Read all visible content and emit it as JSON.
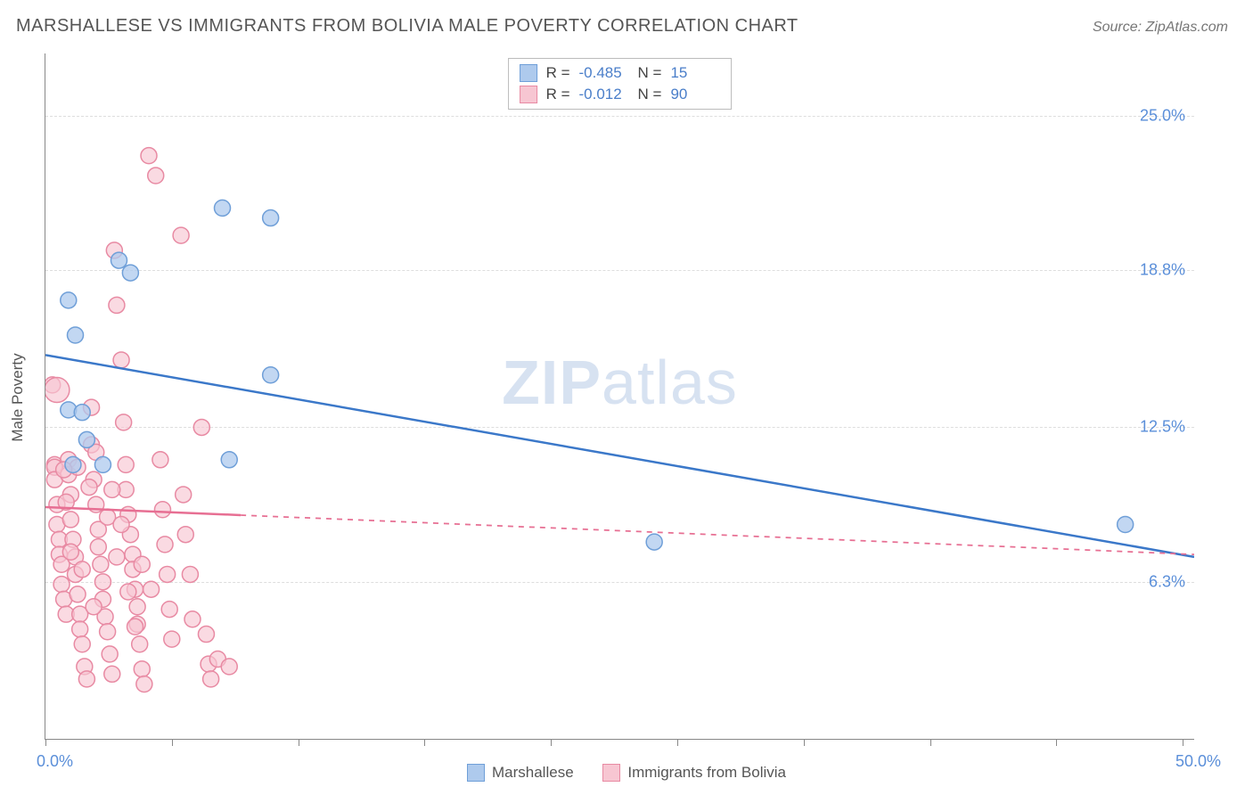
{
  "title": "MARSHALLESE VS IMMIGRANTS FROM BOLIVIA MALE POVERTY CORRELATION CHART",
  "source": "Source: ZipAtlas.com",
  "watermark_bold": "ZIP",
  "watermark_light": "atlas",
  "y_axis_title": "Male Poverty",
  "chart": {
    "type": "scatter",
    "xlim": [
      0,
      50
    ],
    "ylim": [
      0,
      27.5
    ],
    "x_min_label": "0.0%",
    "x_max_label": "50.0%",
    "y_gridlines": [
      6.3,
      12.5,
      18.8,
      25.0
    ],
    "y_grid_labels": [
      "6.3%",
      "12.5%",
      "18.8%",
      "25.0%"
    ],
    "x_ticks": [
      0,
      5.5,
      11,
      16.5,
      22,
      27.5,
      33,
      38.5,
      44,
      49.5
    ],
    "grid_color": "#dddddd",
    "axis_color": "#888888",
    "label_color": "#5b8fd9",
    "plot_bg": "#ffffff"
  },
  "series": [
    {
      "name": "Marshallese",
      "color_fill": "#aecaed",
      "color_stroke": "#6f9fd8",
      "marker_radius": 9,
      "marker_opacity": 0.75,
      "line_color": "#3b78c9",
      "line_width": 2.5,
      "line_dash": "none",
      "R": "-0.485",
      "N": "15",
      "trend": {
        "x1": 0,
        "y1": 15.4,
        "x2": 50,
        "y2": 7.3
      },
      "trend_solid_until_x": 50,
      "points": [
        {
          "x": 1.0,
          "y": 17.6
        },
        {
          "x": 1.3,
          "y": 16.2
        },
        {
          "x": 3.2,
          "y": 19.2
        },
        {
          "x": 3.7,
          "y": 18.7
        },
        {
          "x": 1.0,
          "y": 13.2
        },
        {
          "x": 1.6,
          "y": 13.1
        },
        {
          "x": 1.8,
          "y": 12.0
        },
        {
          "x": 7.7,
          "y": 21.3
        },
        {
          "x": 9.8,
          "y": 20.9
        },
        {
          "x": 9.8,
          "y": 14.6
        },
        {
          "x": 8.0,
          "y": 11.2
        },
        {
          "x": 2.5,
          "y": 11.0
        },
        {
          "x": 26.5,
          "y": 7.9
        },
        {
          "x": 47.0,
          "y": 8.6
        },
        {
          "x": 1.2,
          "y": 11.0
        }
      ]
    },
    {
      "name": "Immigrants from Bolivia",
      "color_fill": "#f7c6d2",
      "color_stroke": "#e88aa3",
      "marker_radius": 9,
      "marker_opacity": 0.65,
      "line_color": "#e76f93",
      "line_width": 2.5,
      "line_dash": "6,6",
      "R": "-0.012",
      "N": "90",
      "trend": {
        "x1": 0,
        "y1": 9.3,
        "x2": 50,
        "y2": 7.4
      },
      "trend_solid_until_x": 8.5,
      "points": [
        {
          "x": 0.3,
          "y": 14.2
        },
        {
          "x": 0.4,
          "y": 11.0
        },
        {
          "x": 0.4,
          "y": 10.9
        },
        {
          "x": 0.4,
          "y": 10.4
        },
        {
          "x": 0.5,
          "y": 9.4
        },
        {
          "x": 0.5,
          "y": 8.6
        },
        {
          "x": 0.6,
          "y": 8.0
        },
        {
          "x": 0.6,
          "y": 7.4
        },
        {
          "x": 0.7,
          "y": 7.0
        },
        {
          "x": 0.7,
          "y": 6.2
        },
        {
          "x": 0.8,
          "y": 5.6
        },
        {
          "x": 0.9,
          "y": 5.0
        },
        {
          "x": 1.0,
          "y": 11.2
        },
        {
          "x": 1.0,
          "y": 10.6
        },
        {
          "x": 1.1,
          "y": 9.8
        },
        {
          "x": 1.1,
          "y": 8.8
        },
        {
          "x": 1.2,
          "y": 8.0
        },
        {
          "x": 1.3,
          "y": 7.3
        },
        {
          "x": 1.3,
          "y": 6.6
        },
        {
          "x": 1.4,
          "y": 5.8
        },
        {
          "x": 1.5,
          "y": 5.0
        },
        {
          "x": 1.5,
          "y": 4.4
        },
        {
          "x": 1.6,
          "y": 3.8
        },
        {
          "x": 1.7,
          "y": 2.9
        },
        {
          "x": 1.8,
          "y": 2.4
        },
        {
          "x": 2.0,
          "y": 13.3
        },
        {
          "x": 2.0,
          "y": 11.8
        },
        {
          "x": 2.1,
          "y": 10.4
        },
        {
          "x": 2.2,
          "y": 9.4
        },
        {
          "x": 2.3,
          "y": 8.4
        },
        {
          "x": 2.3,
          "y": 7.7
        },
        {
          "x": 2.4,
          "y": 7.0
        },
        {
          "x": 2.5,
          "y": 6.3
        },
        {
          "x": 2.5,
          "y": 5.6
        },
        {
          "x": 2.6,
          "y": 4.9
        },
        {
          "x": 2.7,
          "y": 4.3
        },
        {
          "x": 2.8,
          "y": 3.4
        },
        {
          "x": 2.9,
          "y": 2.6
        },
        {
          "x": 3.0,
          "y": 19.6
        },
        {
          "x": 3.1,
          "y": 17.4
        },
        {
          "x": 3.3,
          "y": 15.2
        },
        {
          "x": 3.4,
          "y": 12.7
        },
        {
          "x": 3.5,
          "y": 11.0
        },
        {
          "x": 3.5,
          "y": 10.0
        },
        {
          "x": 3.6,
          "y": 9.0
        },
        {
          "x": 3.7,
          "y": 8.2
        },
        {
          "x": 3.8,
          "y": 7.4
        },
        {
          "x": 3.8,
          "y": 6.8
        },
        {
          "x": 3.9,
          "y": 6.0
        },
        {
          "x": 4.0,
          "y": 5.3
        },
        {
          "x": 4.0,
          "y": 4.6
        },
        {
          "x": 4.1,
          "y": 3.8
        },
        {
          "x": 4.2,
          "y": 2.8
        },
        {
          "x": 4.3,
          "y": 2.2
        },
        {
          "x": 4.5,
          "y": 23.4
        },
        {
          "x": 4.8,
          "y": 22.6
        },
        {
          "x": 5.0,
          "y": 11.2
        },
        {
          "x": 5.1,
          "y": 9.2
        },
        {
          "x": 5.2,
          "y": 7.8
        },
        {
          "x": 5.3,
          "y": 6.6
        },
        {
          "x": 5.4,
          "y": 5.2
        },
        {
          "x": 5.5,
          "y": 4.0
        },
        {
          "x": 5.9,
          "y": 20.2
        },
        {
          "x": 6.0,
          "y": 9.8
        },
        {
          "x": 6.1,
          "y": 8.2
        },
        {
          "x": 6.3,
          "y": 6.6
        },
        {
          "x": 6.4,
          "y": 4.8
        },
        {
          "x": 6.8,
          "y": 12.5
        },
        {
          "x": 7.0,
          "y": 4.2
        },
        {
          "x": 7.1,
          "y": 3.0
        },
        {
          "x": 7.2,
          "y": 2.4
        },
        {
          "x": 7.5,
          "y": 3.2
        },
        {
          "x": 8.0,
          "y": 2.9
        },
        {
          "x": 0.5,
          "y": 14.0,
          "r": 14
        },
        {
          "x": 1.4,
          "y": 10.9
        },
        {
          "x": 1.9,
          "y": 10.1
        },
        {
          "x": 2.1,
          "y": 5.3
        },
        {
          "x": 2.7,
          "y": 8.9
        },
        {
          "x": 3.1,
          "y": 7.3
        },
        {
          "x": 3.6,
          "y": 5.9
        },
        {
          "x": 4.2,
          "y": 7.0
        },
        {
          "x": 4.6,
          "y": 6.0
        },
        {
          "x": 0.8,
          "y": 10.8
        },
        {
          "x": 0.9,
          "y": 9.5
        },
        {
          "x": 1.1,
          "y": 7.5
        },
        {
          "x": 1.6,
          "y": 6.8
        },
        {
          "x": 2.2,
          "y": 11.5
        },
        {
          "x": 2.9,
          "y": 10.0
        },
        {
          "x": 3.3,
          "y": 8.6
        },
        {
          "x": 3.9,
          "y": 4.5
        }
      ]
    }
  ],
  "stats_legend_labels": {
    "R": "R =",
    "N": "N ="
  },
  "bottom_legend": [
    {
      "label": "Marshallese",
      "fill": "#aecaed",
      "stroke": "#6f9fd8"
    },
    {
      "label": "Immigrants from Bolivia",
      "fill": "#f7c6d2",
      "stroke": "#e88aa3"
    }
  ]
}
